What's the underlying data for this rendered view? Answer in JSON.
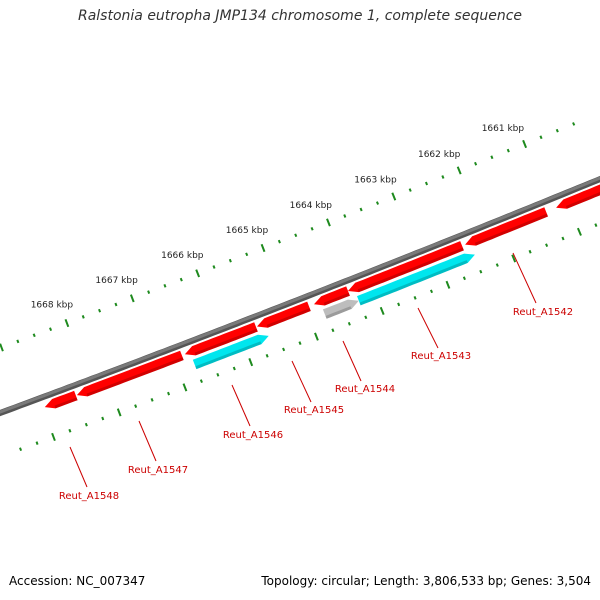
{
  "title": "Ralstonia eutropha JMP134 chromosome 1, complete sequence",
  "footer": {
    "accession": "Accession: NC_007347",
    "summary": "Topology: circular; Length: 3,806,533 bp; Genes: 3,504"
  },
  "scale": {
    "unit": "kbp",
    "ticks": [
      "1661 kbp",
      "1662 kbp",
      "1663 kbp",
      "1664 kbp",
      "1665 kbp",
      "1666 kbp",
      "1667 kbp",
      "1668 kbp"
    ]
  },
  "colors": {
    "gene_red": "#ff0000",
    "gene_cyan": "#00e6ee",
    "gene_gray": "#bdbdbd",
    "backbone": "#7a7a7a",
    "ticks": "#1e8a1e",
    "label": "#cc0000"
  },
  "genes": [
    {
      "label": "Reut_A1542",
      "color": "gene_red"
    },
    {
      "label": "Reut_A1543",
      "color": "gene_cyan"
    },
    {
      "label": "Reut_A1544",
      "color": "gene_gray"
    },
    {
      "label": "Reut_A1545",
      "color": "gene_red"
    },
    {
      "label": "Reut_A1546",
      "color": "gene_cyan"
    },
    {
      "label": "Reut_A1547",
      "color": "gene_red"
    },
    {
      "label": "Reut_A1548",
      "color": "gene_red"
    }
  ]
}
